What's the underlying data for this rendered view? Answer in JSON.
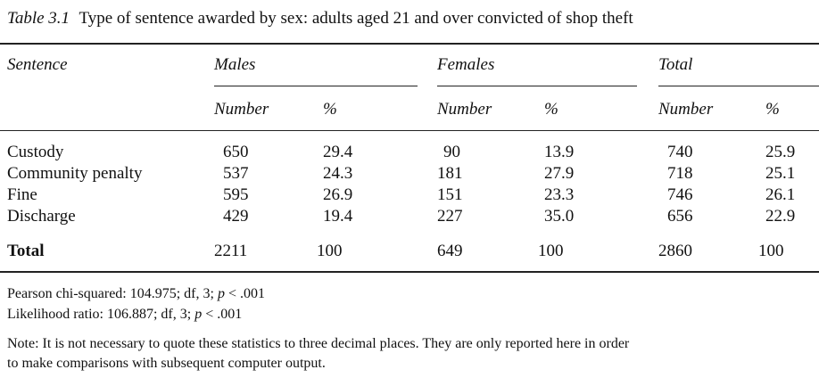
{
  "caption": {
    "label": "Table 3.1",
    "title": "Type of sentence awarded by sex: adults aged 21 and over convicted of shop theft"
  },
  "headers": {
    "sentence": "Sentence",
    "males": "Males",
    "females": "Females",
    "total": "Total",
    "number": "Number",
    "percent": "%"
  },
  "rows": [
    {
      "label": "Custody",
      "m_n": "650",
      "m_p": "29.4",
      "f_n": "90",
      "f_p": "13.9",
      "t_n": "740",
      "t_p": "25.9"
    },
    {
      "label": "Community penalty",
      "m_n": "537",
      "m_p": "24.3",
      "f_n": "181",
      "f_p": "27.9",
      "t_n": "718",
      "t_p": "25.1"
    },
    {
      "label": "Fine",
      "m_n": "595",
      "m_p": "26.9",
      "f_n": "151",
      "f_p": "23.3",
      "t_n": "746",
      "t_p": "26.1"
    },
    {
      "label": "Discharge",
      "m_n": "429",
      "m_p": "19.4",
      "f_n": "227",
      "f_p": "35.0",
      "t_n": "656",
      "t_p": "22.9"
    }
  ],
  "total_row": {
    "label": "Total",
    "m_n": "2211",
    "m_p": "100",
    "f_n": "649",
    "f_p": "100",
    "t_n": "2860",
    "t_p": "100"
  },
  "stats": {
    "pearson_prefix": "Pearson chi-squared: 104.975; df, 3; ",
    "likelihood_prefix": "Likelihood ratio: 106.887; df, 3; ",
    "p_symbol": "p",
    "p_suffix": " < .001"
  },
  "note": {
    "line1": "Note: It is not necessary to quote these statistics to three decimal places. They are only reported here in order",
    "line2": "to make comparisons with subsequent computer output."
  }
}
